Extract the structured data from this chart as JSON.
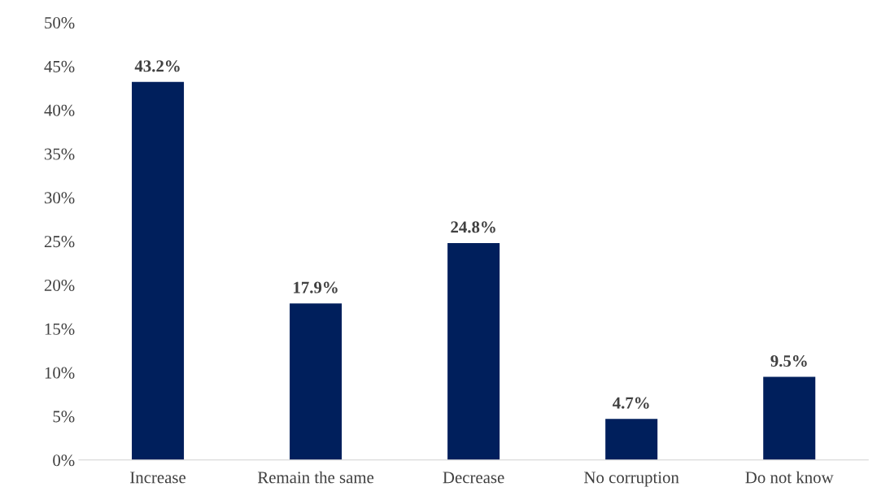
{
  "chart_data": {
    "type": "bar",
    "categories": [
      "Increase",
      "Remain the same",
      "Decrease",
      "No corruption",
      "Do not know"
    ],
    "values": [
      43.2,
      17.9,
      24.8,
      4.7,
      9.5
    ],
    "value_labels": [
      "43.2%",
      "17.9%",
      "24.8%",
      "4.7%",
      "9.5%"
    ],
    "color": "#001f5c",
    "ylim": [
      0,
      50
    ],
    "yticks": [
      {
        "value": 0,
        "label": "0%"
      },
      {
        "value": 5,
        "label": "5%"
      },
      {
        "value": 10,
        "label": "10%"
      },
      {
        "value": 15,
        "label": "15%"
      },
      {
        "value": 20,
        "label": "20%"
      },
      {
        "value": 25,
        "label": "25%"
      },
      {
        "value": 30,
        "label": "30%"
      },
      {
        "value": 35,
        "label": "35%"
      },
      {
        "value": 40,
        "label": "40%"
      },
      {
        "value": 45,
        "label": "45%"
      },
      {
        "value": 50,
        "label": "50%"
      }
    ],
    "grid": false
  }
}
